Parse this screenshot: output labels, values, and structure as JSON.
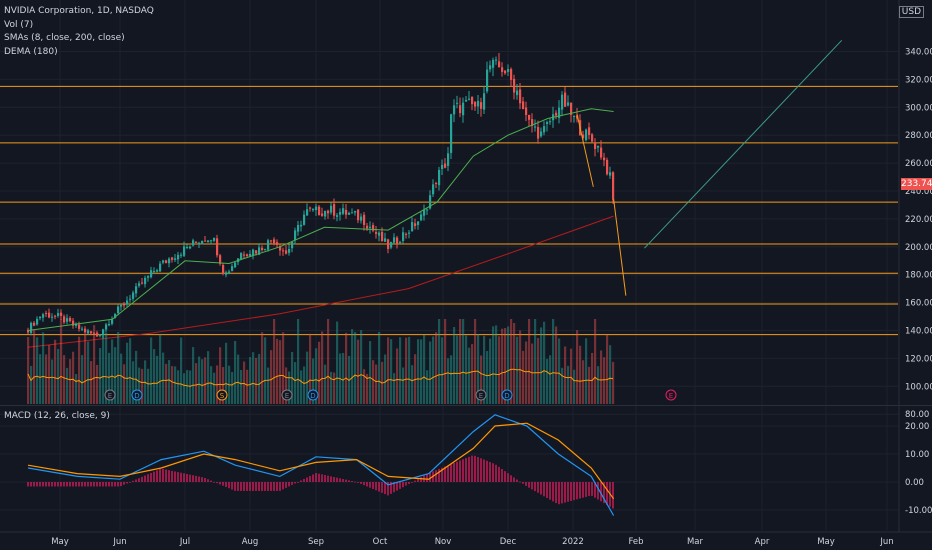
{
  "header": {
    "symbol_line": "NVIDIA Corporation, 1D, NASDAQ",
    "vol_line": "Vol (7)",
    "sma_line": "SMAs (8, close, 200, close)",
    "dema_line": "DEMA (180)",
    "currency": "USD",
    "last_price": "233.74"
  },
  "macd": {
    "label": "MACD (12, 26, close, 9)"
  },
  "colors": {
    "background": "#131722",
    "up": "#26a69a",
    "down": "#ef5350",
    "sma8": "#4caf50",
    "sma200": "#b71c1c",
    "level_line": "#f59b1a",
    "trend_line": "#3d9a8b",
    "macd_line": "#2196f3",
    "signal_line": "#ff9800",
    "histogram": "#e91e63"
  },
  "chart_data": {
    "type": "candlestick",
    "symbol": "NVIDIA Corporation",
    "interval": "1D",
    "exchange": "NASDAQ",
    "price_axis": {
      "ticks": [
        "340.00",
        "320.00",
        "300.00",
        "280.00",
        "260.00",
        "240.00",
        "220.00",
        "200.00",
        "180.00",
        "160.00",
        "140.00",
        "120.00",
        "100.00",
        "80.00"
      ],
      "range": [
        80,
        352
      ]
    },
    "time_axis": {
      "ticks": [
        "May",
        "Jun",
        "Jul",
        "Aug",
        "Sep",
        "Oct",
        "Nov",
        "Dec",
        "2022",
        "Feb",
        "Mar",
        "Apr",
        "May",
        "Jun"
      ]
    },
    "horizontal_levels": [
      315,
      274.5,
      232,
      202,
      181,
      159,
      137
    ],
    "close_path": [
      [
        "2021-04-15",
        141
      ],
      [
        "2021-04-22",
        152
      ],
      [
        "2021-04-30",
        150
      ],
      [
        "2021-05-10",
        142
      ],
      [
        "2021-05-20",
        136
      ],
      [
        "2021-05-28",
        150
      ],
      [
        "2021-06-10",
        172
      ],
      [
        "2021-06-18",
        185
      ],
      [
        "2021-06-25",
        193
      ],
      [
        "2021-07-08",
        205
      ],
      [
        "2021-07-14",
        208
      ],
      [
        "2021-07-20",
        180
      ],
      [
        "2021-07-28",
        196
      ],
      [
        "2021-08-05",
        198
      ],
      [
        "2021-08-12",
        206
      ],
      [
        "2021-08-18",
        195
      ],
      [
        "2021-08-27",
        225
      ],
      [
        "2021-09-08",
        226
      ],
      [
        "2021-09-16",
        224
      ],
      [
        "2021-09-23",
        220
      ],
      [
        "2021-09-30",
        208
      ],
      [
        "2021-10-05",
        200
      ],
      [
        "2021-10-15",
        212
      ],
      [
        "2021-10-22",
        222
      ],
      [
        "2021-10-29",
        250
      ],
      [
        "2021-11-03",
        262
      ],
      [
        "2021-11-05",
        298
      ],
      [
        "2021-11-12",
        302
      ],
      [
        "2021-11-18",
        300
      ],
      [
        "2021-11-22",
        330
      ],
      [
        "2021-11-29",
        328
      ],
      [
        "2021-12-06",
        310
      ],
      [
        "2021-12-10",
        290
      ],
      [
        "2021-12-17",
        280
      ],
      [
        "2021-12-27",
        305
      ],
      [
        "2021-12-31",
        295
      ],
      [
        "2022-01-06",
        282
      ],
      [
        "2022-01-11",
        275
      ],
      [
        "2022-01-14",
        270
      ],
      [
        "2022-01-19",
        251
      ],
      [
        "2022-01-21",
        233.74
      ]
    ],
    "sma_8_path": [
      [
        "2021-04-15",
        140
      ],
      [
        "2021-05-28",
        148
      ],
      [
        "2021-07-01",
        190
      ],
      [
        "2021-07-22",
        188
      ],
      [
        "2021-08-15",
        200
      ],
      [
        "2021-09-05",
        214
      ],
      [
        "2021-10-05",
        212
      ],
      [
        "2021-10-29",
        232
      ],
      [
        "2021-11-15",
        265
      ],
      [
        "2021-12-01",
        280
      ],
      [
        "2021-12-20",
        292
      ],
      [
        "2022-01-10",
        299
      ],
      [
        "2022-01-21",
        297
      ]
    ],
    "sma_200_path": [
      [
        "2021-04-15",
        128
      ],
      [
        "2021-06-15",
        138
      ],
      [
        "2021-08-15",
        152
      ],
      [
        "2021-10-15",
        170
      ],
      [
        "2021-12-01",
        195
      ],
      [
        "2022-01-21",
        222
      ]
    ],
    "drawings": [
      {
        "type": "trend_line",
        "from": [
          "2022-01-03",
          295
        ],
        "to": [
          "2022-01-11",
          243
        ]
      },
      {
        "type": "trend_line",
        "from": [
          "2022-01-21",
          234
        ],
        "to": [
          "2022-01-27",
          165
        ]
      },
      {
        "type": "trend_line",
        "from": [
          "2022-02-05",
          199
        ],
        "to": [
          "2022-05-09",
          348
        ]
      }
    ],
    "volume_axis": {
      "ticks": [],
      "markers": [
        "E",
        "D",
        "S",
        "E",
        "D",
        "E",
        "D",
        "E"
      ]
    },
    "macd_axis": {
      "ticks": [
        "20.00",
        "10.00",
        "0.00",
        "-10.00"
      ],
      "range": [
        -14,
        24
      ]
    },
    "macd_line": [
      [
        "2021-04-15",
        5
      ],
      [
        "2021-05-10",
        2
      ],
      [
        "2021-06-01",
        1
      ],
      [
        "2021-06-20",
        8
      ],
      [
        "2021-07-10",
        11
      ],
      [
        "2021-07-25",
        6
      ],
      [
        "2021-08-15",
        2
      ],
      [
        "2021-09-01",
        9
      ],
      [
        "2021-09-20",
        8
      ],
      [
        "2021-10-05",
        -1
      ],
      [
        "2021-10-25",
        3
      ],
      [
        "2021-11-15",
        18
      ],
      [
        "2021-11-25",
        24
      ],
      [
        "2021-12-10",
        20
      ],
      [
        "2021-12-25",
        10
      ],
      [
        "2022-01-10",
        2
      ],
      [
        "2022-01-21",
        -12
      ]
    ],
    "signal_line": [
      [
        "2021-04-15",
        6
      ],
      [
        "2021-05-10",
        3
      ],
      [
        "2021-06-01",
        2
      ],
      [
        "2021-06-20",
        5
      ],
      [
        "2021-07-10",
        10
      ],
      [
        "2021-07-25",
        8
      ],
      [
        "2021-08-15",
        4
      ],
      [
        "2021-09-01",
        7
      ],
      [
        "2021-09-20",
        8
      ],
      [
        "2021-10-05",
        2
      ],
      [
        "2021-10-25",
        1
      ],
      [
        "2021-11-15",
        12
      ],
      [
        "2021-11-25",
        20
      ],
      [
        "2021-12-10",
        21
      ],
      [
        "2021-12-25",
        15
      ],
      [
        "2022-01-10",
        5
      ],
      [
        "2022-01-21",
        -6
      ]
    ]
  }
}
